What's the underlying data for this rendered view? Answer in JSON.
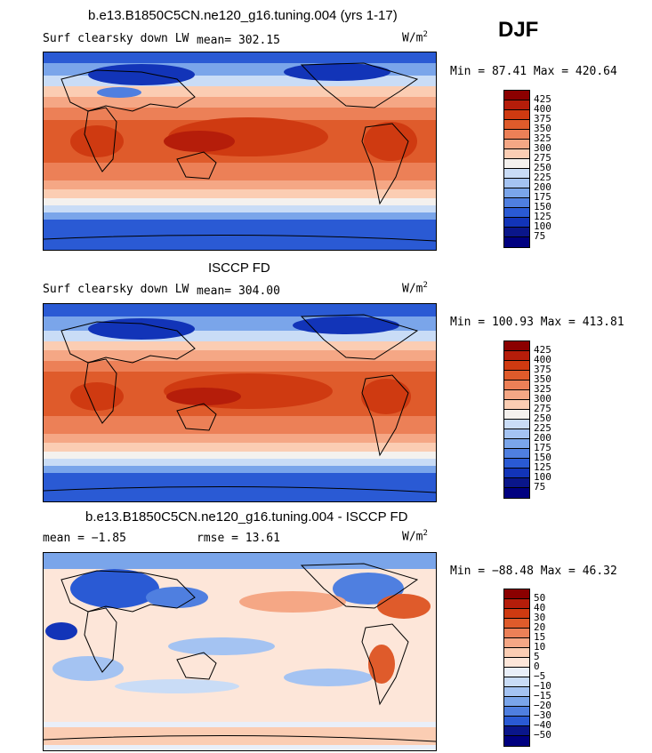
{
  "season": "DJF",
  "units": "W/m",
  "units_exp": "2",
  "panels": [
    {
      "id": "model",
      "title": "b.e13.B1850C5CN.ne120_g16.tuning.004 (yrs 1-17)",
      "left_label": "Surf clearsky down LW",
      "stat_label": "mean= 302.15",
      "minmax": "Min =  87.41 Max = 420.64",
      "colorbar": [
        "425",
        "400",
        "375",
        "350",
        "325",
        "300",
        "275",
        "250",
        "225",
        "200",
        "175",
        "150",
        "125",
        "100",
        "75"
      ]
    },
    {
      "id": "obs",
      "title": "ISCCP FD",
      "left_label": "Surf clearsky down LW",
      "stat_label": "mean= 304.00",
      "minmax": "Min = 100.93 Max = 413.81",
      "colorbar": [
        "425",
        "400",
        "375",
        "350",
        "325",
        "300",
        "275",
        "250",
        "225",
        "200",
        "175",
        "150",
        "125",
        "100",
        "75"
      ]
    },
    {
      "id": "diff",
      "title": "b.e13.B1850C5CN.ne120_g16.tuning.004 - ISCCP FD",
      "left_label": "mean =  −1.85",
      "stat_label": "rmse =  13.61",
      "minmax": "Min = −88.48 Max =  46.32",
      "colorbar": [
        "50",
        "40",
        "30",
        "20",
        "15",
        "10",
        "5",
        "0",
        "−5",
        "−10",
        "−15",
        "−20",
        "−30",
        "−40",
        "−50"
      ]
    }
  ],
  "colors": {
    "abs_scale": [
      "#8b0000",
      "#b51d0a",
      "#cf3a11",
      "#df5b2b",
      "#ec8057",
      "#f5a785",
      "#fbcdb3",
      "#f4f1ee",
      "#c9dcf6",
      "#a4c3f2",
      "#7aa5ea",
      "#4f7fe0",
      "#2a5ad4",
      "#1234b8",
      "#0a168a",
      "#000080"
    ],
    "diff_scale": [
      "#8b0000",
      "#b51d0a",
      "#cf3a11",
      "#df5b2b",
      "#ec8057",
      "#f5a785",
      "#fbcdb3",
      "#fde6d9",
      "#e9eff9",
      "#c9dcf6",
      "#a4c3f2",
      "#7aa5ea",
      "#4f7fe0",
      "#2a5ad4",
      "#0a168a",
      "#000080"
    ]
  }
}
